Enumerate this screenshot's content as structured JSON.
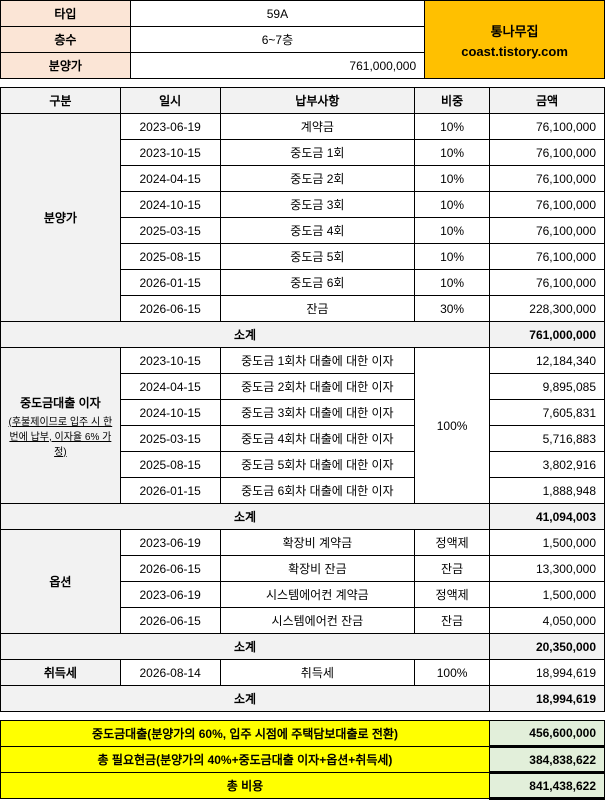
{
  "header": {
    "rows": [
      {
        "label": "타입",
        "value": "59A"
      },
      {
        "label": "층수",
        "value": "6~7층"
      },
      {
        "label": "분양가",
        "value": "761,000,000"
      }
    ],
    "brand_line1": "통나무집",
    "brand_line2": "coast.tistory.com"
  },
  "columns": {
    "section": "구분",
    "date": "일시",
    "item": "납부사항",
    "ratio": "비중",
    "amount": "금액"
  },
  "sections": [
    {
      "name": "분양가",
      "subnote": "",
      "rows": [
        {
          "date": "2023-06-19",
          "item": "계약금",
          "ratio": "10%",
          "amount": "76,100,000"
        },
        {
          "date": "2023-10-15",
          "item": "중도금 1회",
          "ratio": "10%",
          "amount": "76,100,000"
        },
        {
          "date": "2024-04-15",
          "item": "중도금 2회",
          "ratio": "10%",
          "amount": "76,100,000"
        },
        {
          "date": "2024-10-15",
          "item": "중도금 3회",
          "ratio": "10%",
          "amount": "76,100,000"
        },
        {
          "date": "2025-03-15",
          "item": "중도금 4회",
          "ratio": "10%",
          "amount": "76,100,000"
        },
        {
          "date": "2025-08-15",
          "item": "중도금 5회",
          "ratio": "10%",
          "amount": "76,100,000"
        },
        {
          "date": "2026-01-15",
          "item": "중도금 6회",
          "ratio": "10%",
          "amount": "76,100,000"
        },
        {
          "date": "2026-06-15",
          "item": "잔금",
          "ratio": "30%",
          "amount": "228,300,000"
        }
      ],
      "subtotal_label": "소계",
      "subtotal_amount": "761,000,000",
      "merged_ratio": null
    },
    {
      "name": "중도금대출 이자",
      "subnote": "(후불제이므로 입주 시 한 번에 납부, 이자율 6% 가정)",
      "rows": [
        {
          "date": "2023-10-15",
          "item": "중도금 1회차 대출에 대한 이자",
          "amount": "12,184,340"
        },
        {
          "date": "2024-04-15",
          "item": "중도금 2회차 대출에 대한 이자",
          "amount": "9,895,085"
        },
        {
          "date": "2024-10-15",
          "item": "중도금 3회차 대출에 대한 이자",
          "amount": "7,605,831"
        },
        {
          "date": "2025-03-15",
          "item": "중도금 4회차 대출에 대한 이자",
          "amount": "5,716,883"
        },
        {
          "date": "2025-08-15",
          "item": "중도금 5회차 대출에 대한 이자",
          "amount": "3,802,916"
        },
        {
          "date": "2026-01-15",
          "item": "중도금 6회차 대출에 대한 이자",
          "amount": "1,888,948"
        }
      ],
      "subtotal_label": "소계",
      "subtotal_amount": "41,094,003",
      "merged_ratio": "100%"
    },
    {
      "name": "옵션",
      "subnote": "",
      "rows": [
        {
          "date": "2023-06-19",
          "item": "확장비 계약금",
          "ratio": "정액제",
          "amount": "1,500,000"
        },
        {
          "date": "2026-06-15",
          "item": "확장비 잔금",
          "ratio": "잔금",
          "amount": "13,300,000"
        },
        {
          "date": "2023-06-19",
          "item": "시스템에어컨 계약금",
          "ratio": "정액제",
          "amount": "1,500,000"
        },
        {
          "date": "2026-06-15",
          "item": "시스템에어컨 잔금",
          "ratio": "잔금",
          "amount": "4,050,000"
        }
      ],
      "subtotal_label": "소계",
      "subtotal_amount": "20,350,000",
      "merged_ratio": null
    },
    {
      "name": "취득세",
      "subnote": "",
      "rows": [
        {
          "date": "2026-08-14",
          "item": "취득세",
          "ratio": "100%",
          "amount": "18,994,619"
        }
      ],
      "subtotal_label": "소계",
      "subtotal_amount": "18,994,619",
      "merged_ratio": null
    }
  ],
  "summary": [
    {
      "label": "중도금대출(분양가의 60%, 입주 시점에 주택담보대출로 전환)",
      "amount": "456,600,000"
    },
    {
      "label": "총 필요현금(분양가의 40%+중도금대출 이자+옵션+취득세)",
      "amount": "384,838,622"
    },
    {
      "label": "총 비용",
      "amount": "841,438,622"
    }
  ]
}
